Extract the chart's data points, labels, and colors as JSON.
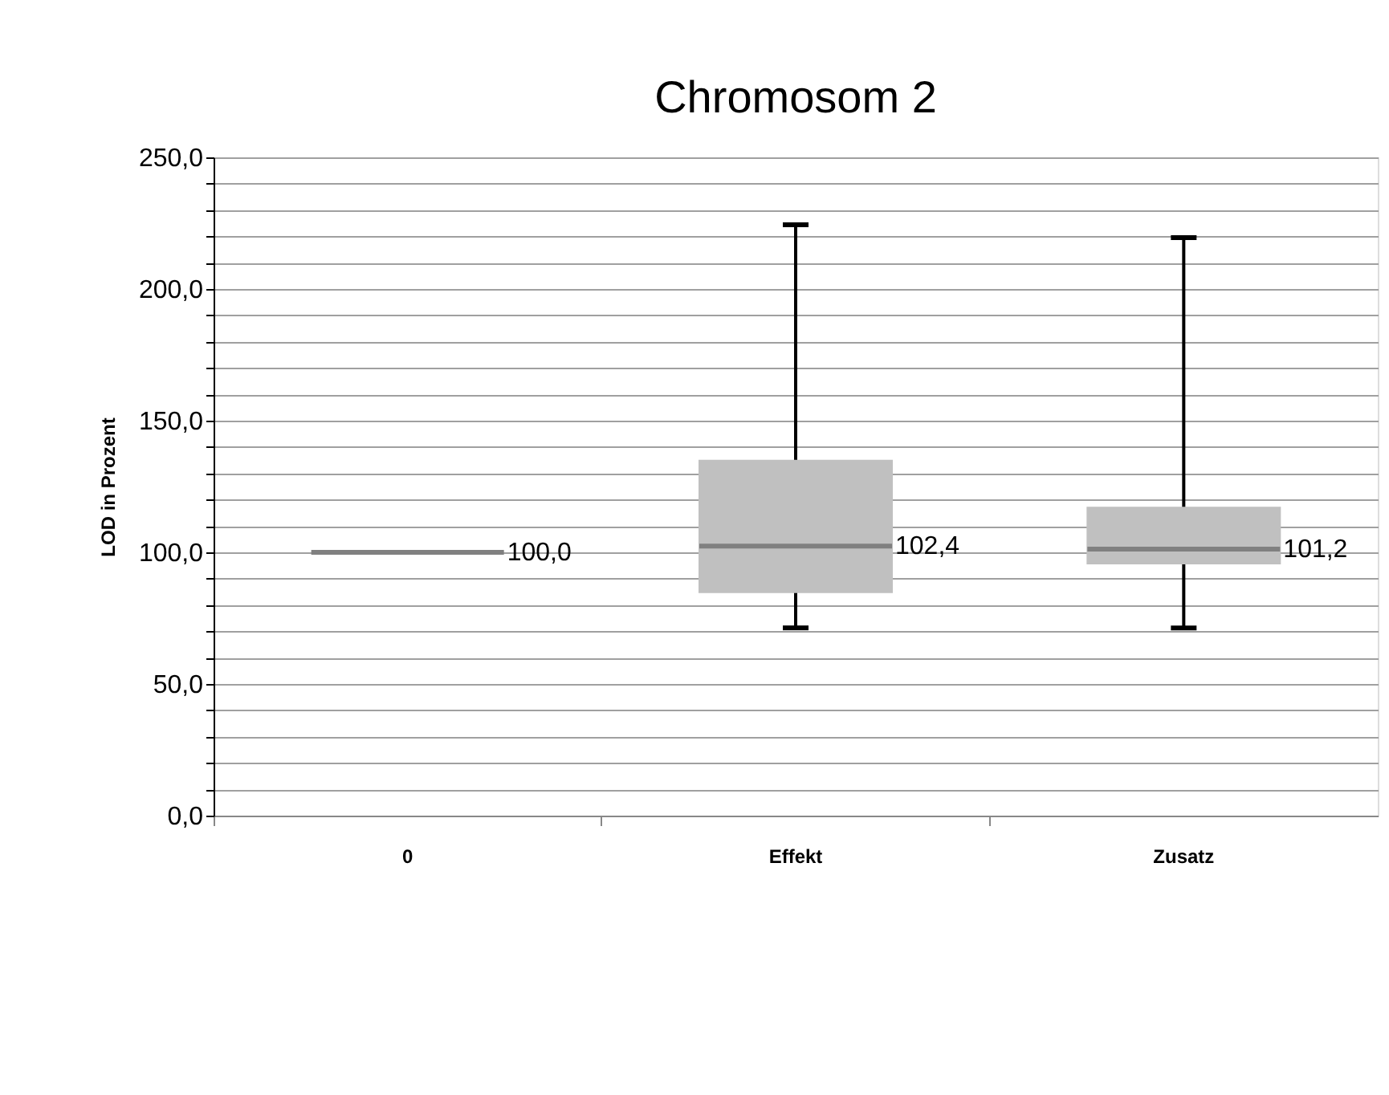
{
  "chart_data": {
    "type": "box",
    "title": "Chromosom 2",
    "ylabel": "LOD in Prozent",
    "categories": [
      "0",
      "Effekt",
      "Zusatz"
    ],
    "boxes": [
      {
        "low": 100,
        "q1": 100,
        "median": 100,
        "q3": 100,
        "high": 100
      },
      {
        "low": 71.3,
        "q1": 84.8,
        "median": 102.4,
        "q3": 134.8,
        "high": 224.4
      },
      {
        "low": 71.3,
        "q1": 95.7,
        "median": 101.2,
        "q3": 117,
        "high": 219.5
      }
    ],
    "value_labels": [
      "100,0",
      "102,4",
      "101,2"
    ],
    "color": "#c0c0c0",
    "ylim": [
      0,
      250
    ],
    "yticks": [
      {
        "value": 0,
        "label": "0,0"
      },
      {
        "value": 10,
        "label": null
      },
      {
        "value": 20,
        "label": null
      },
      {
        "value": 30,
        "label": null
      },
      {
        "value": 40,
        "label": null
      },
      {
        "value": 50,
        "label": "50,0"
      },
      {
        "value": 60,
        "label": null
      },
      {
        "value": 70,
        "label": null
      },
      {
        "value": 80,
        "label": null
      },
      {
        "value": 90,
        "label": null
      },
      {
        "value": 100,
        "label": "100,0"
      },
      {
        "value": 110,
        "label": null
      },
      {
        "value": 120,
        "label": null
      },
      {
        "value": 130,
        "label": null
      },
      {
        "value": 140,
        "label": null
      },
      {
        "value": 150,
        "label": "150,0"
      },
      {
        "value": 160,
        "label": null
      },
      {
        "value": 170,
        "label": null
      },
      {
        "value": 180,
        "label": null
      },
      {
        "value": 190,
        "label": null
      },
      {
        "value": 200,
        "label": "200,0"
      },
      {
        "value": 210,
        "label": null
      },
      {
        "value": 220,
        "label": null
      },
      {
        "value": 230,
        "label": null
      },
      {
        "value": 240,
        "label": null
      },
      {
        "value": 250,
        "label": "250,0"
      }
    ],
    "grid": "y"
  }
}
